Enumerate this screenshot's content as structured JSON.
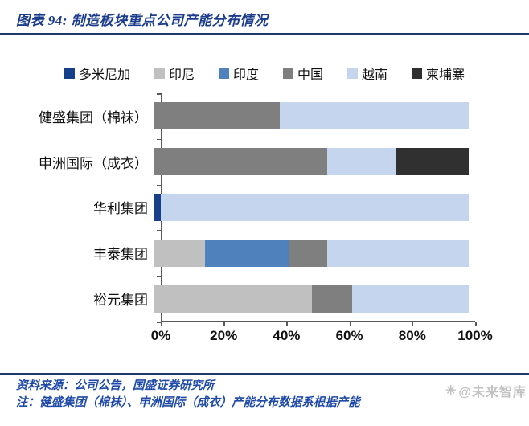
{
  "title": "图表 94: 制造板块重点公司产能分布情况",
  "footer": {
    "source": "资料来源：公司公告，国盛证券研究所",
    "note": "注：健盛集团（棉袜）、申洲国际（成衣）产能分布数据系根据产能"
  },
  "watermark": {
    "icon": "✳",
    "text": "@未来智库"
  },
  "colors": {
    "title_navy": "#1b3c8c",
    "rule_navy": "#1f3864",
    "axis_gray": "#595959",
    "footer_blue": "#1f4aa8"
  },
  "chart_data": {
    "type": "bar",
    "orientation": "horizontal",
    "stacked": true,
    "title": "制造板块重点公司产能分布情况",
    "categories": [
      "健盛集团（棉袜）",
      "申洲国际（成衣）",
      "华利集团",
      "丰泰集团",
      "裕元集团"
    ],
    "series": [
      {
        "name": "多米尼加",
        "color": "#17408b",
        "values": [
          0,
          0,
          2,
          0,
          0
        ]
      },
      {
        "name": "印尼",
        "color": "#c0c0c0",
        "values": [
          0,
          0,
          0,
          16,
          50
        ]
      },
      {
        "name": "印度",
        "color": "#4f81bd",
        "values": [
          0,
          0,
          0,
          27,
          0
        ]
      },
      {
        "name": "中国",
        "color": "#7f7f7f",
        "values": [
          40,
          55,
          0,
          12,
          13
        ]
      },
      {
        "name": "越南",
        "color": "#c5d5ed",
        "values": [
          60,
          22,
          98,
          45,
          37
        ]
      },
      {
        "name": "柬埔寨",
        "color": "#303030",
        "values": [
          0,
          23,
          0,
          0,
          0
        ]
      }
    ],
    "x_ticks": [
      "0%",
      "20%",
      "40%",
      "60%",
      "80%",
      "100%"
    ],
    "xlim": [
      0,
      100
    ],
    "grid": false,
    "legend_position": "top"
  }
}
